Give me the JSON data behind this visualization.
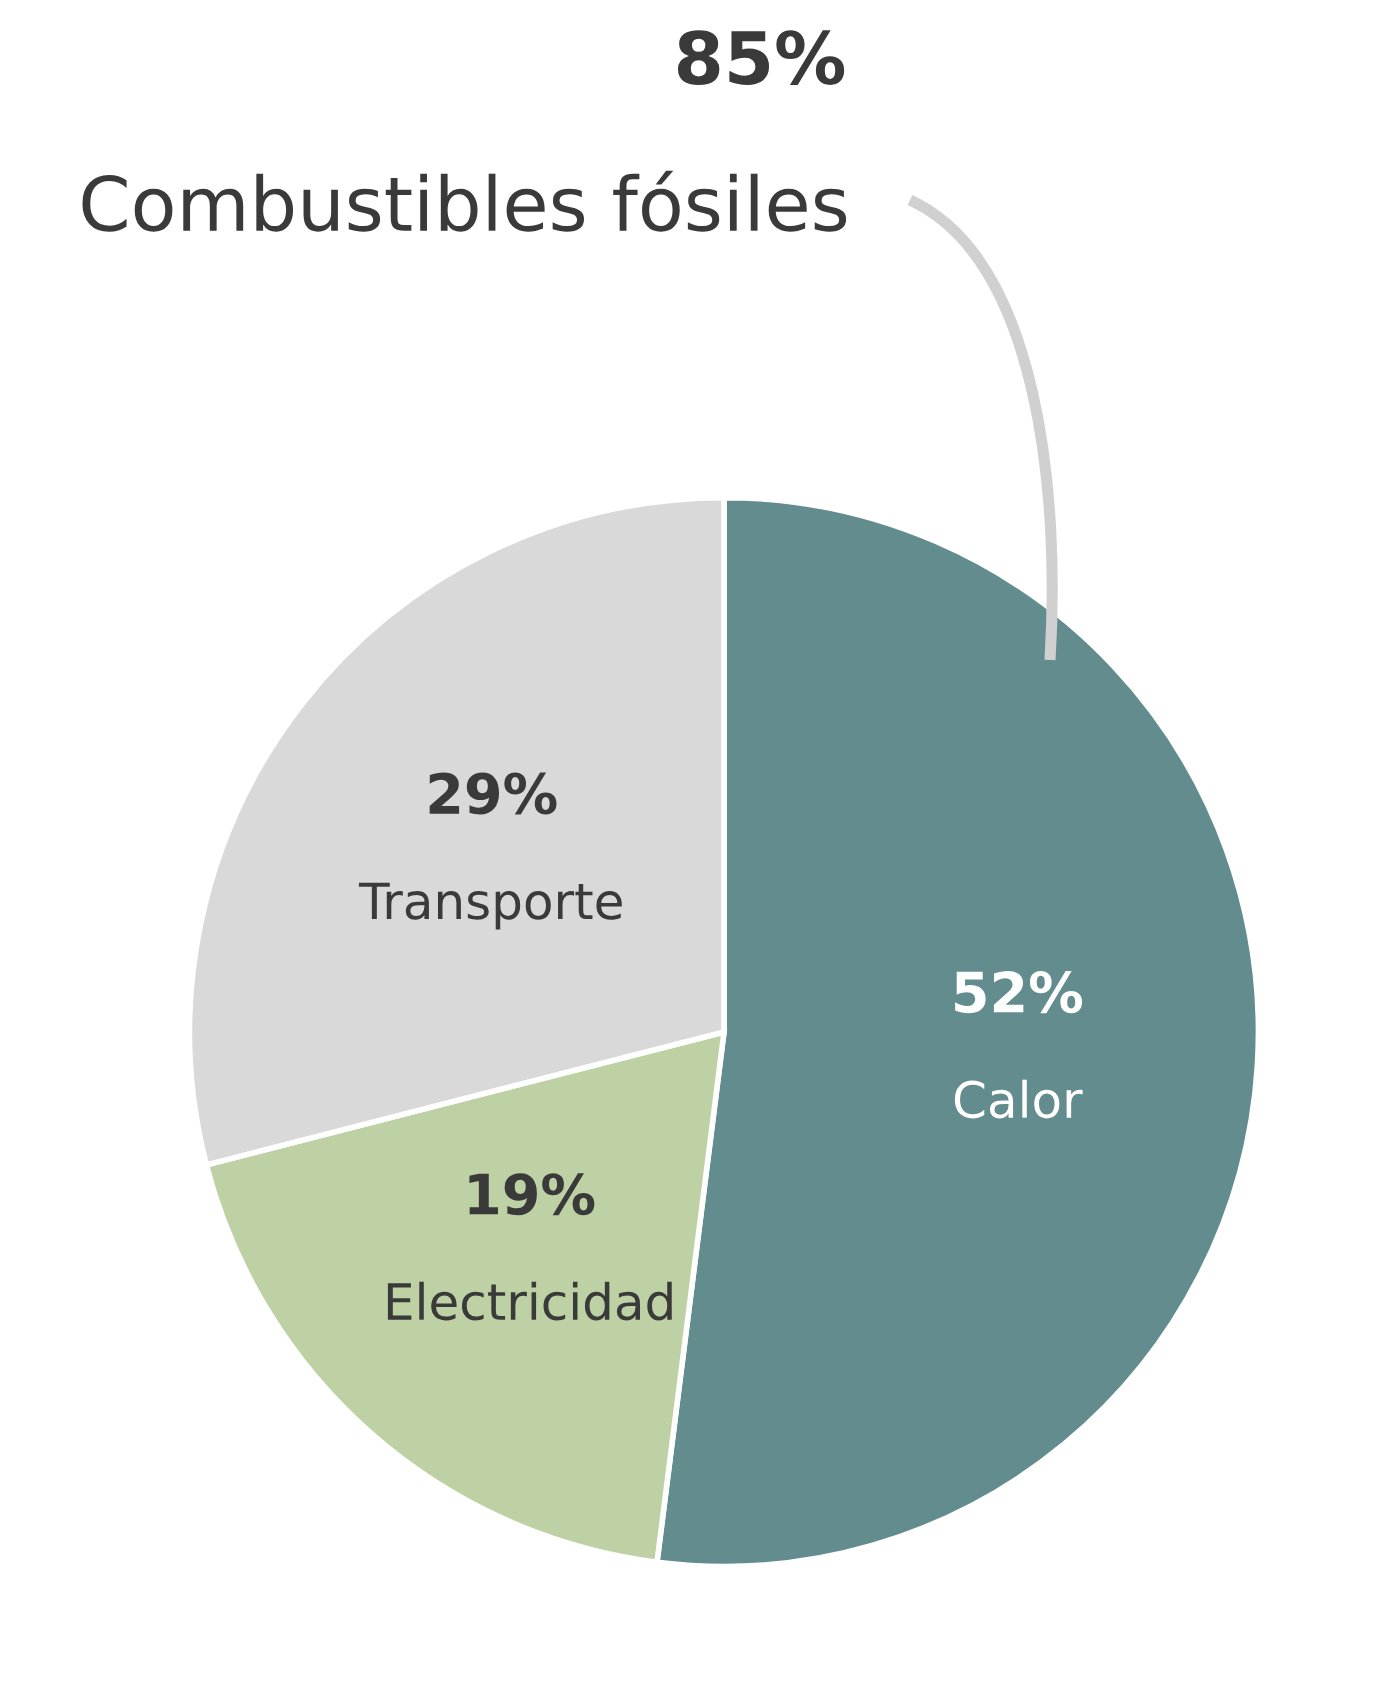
{
  "chart_data": {
    "type": "pie",
    "categories": [
      "Calor",
      "Electricidad",
      "Transporte"
    ],
    "values": [
      52,
      19,
      29
    ],
    "colors": [
      "#638c8e",
      "#bed1a4",
      "#d9d9d9"
    ],
    "value_labels": [
      "52%",
      "19%",
      "29%"
    ],
    "annotations": [
      "85%",
      "Combustibles fósiles"
    ],
    "legend": false
  }
}
